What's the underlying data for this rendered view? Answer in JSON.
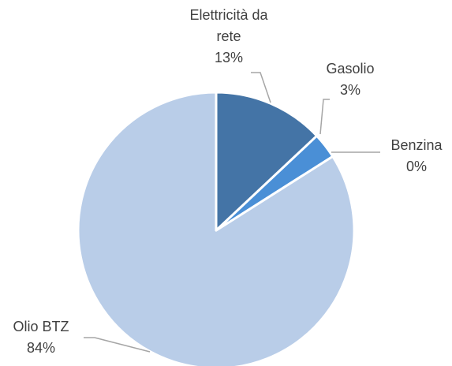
{
  "chart_data": {
    "type": "pie",
    "categories": [
      "Elettricità da rete",
      "Gasolio",
      "Benzina",
      "Olio BTZ"
    ],
    "values": [
      13,
      3,
      0,
      84
    ],
    "value_labels": [
      "13%",
      "3%",
      "0%",
      "84%"
    ],
    "colors": [
      "#4474a6",
      "#4a8fd6",
      "#9fb9dd",
      "#b9cde8"
    ]
  }
}
